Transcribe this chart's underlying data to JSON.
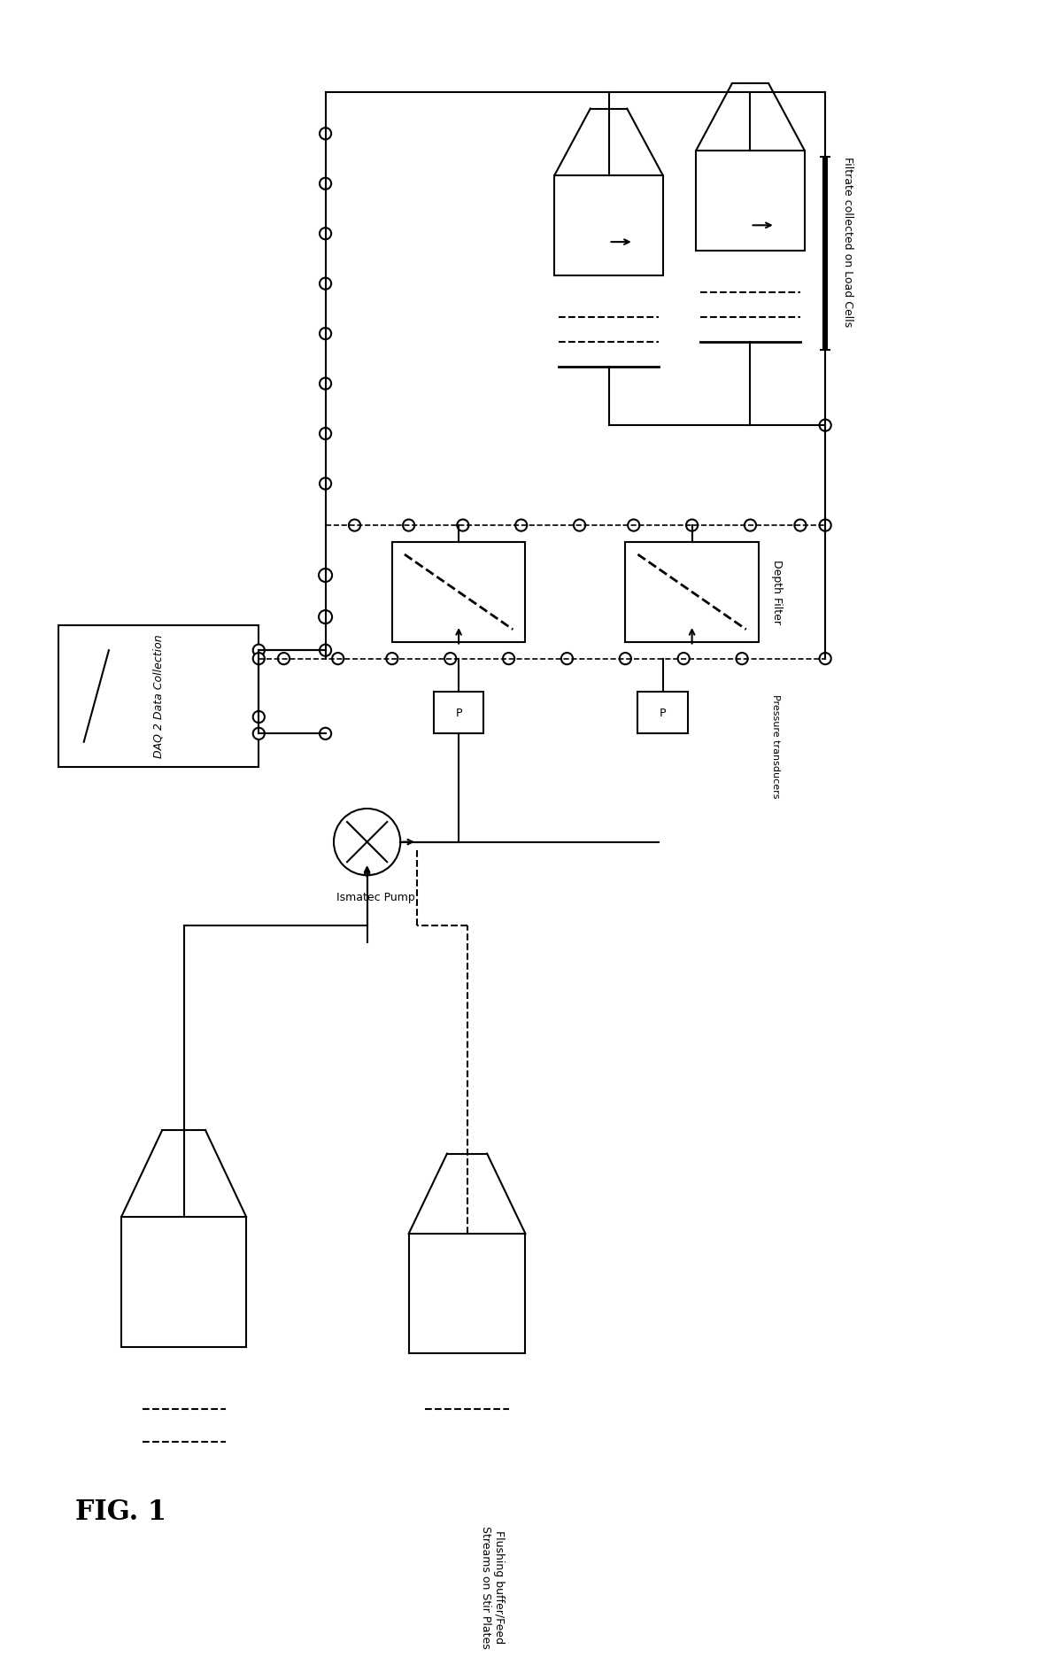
{
  "title": "FIG. 1",
  "background_color": "#ffffff",
  "line_color": "#000000",
  "fig_width": 12.4,
  "fig_height": 18.94,
  "labels": {
    "filtrate": "Filtrate collected on Load Cells",
    "depth_filter": "Depth Filter",
    "pressure": "Pressure transducers",
    "pump": "Ismatec Pump",
    "daq": "DAQ 2 Data Collection",
    "flushing": "Flushing buffer/Feed\nStreams on Stir Plates"
  }
}
